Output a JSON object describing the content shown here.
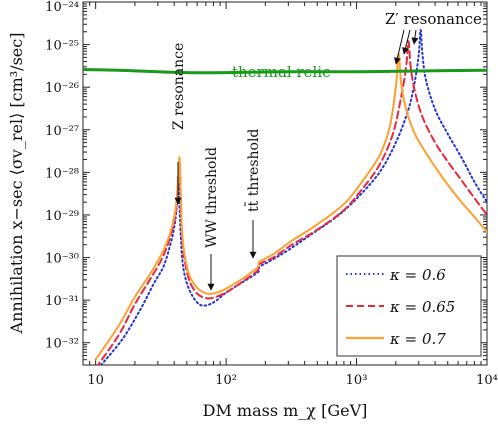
{
  "chart_data": {
    "type": "line",
    "xlabel": "DM mass m_χ [GeV]",
    "ylabel": "Annihilation x−sec ⟨σv_rel⟩ [cm³/sec]",
    "x_scale": "log",
    "y_scale": "log",
    "xlim": [
      8,
      10000
    ],
    "ylim": [
      3e-33,
      1e-24
    ],
    "x_ticks": [
      10,
      100,
      1000,
      10000
    ],
    "x_tick_labels": [
      "10",
      "10²",
      "10³",
      "10⁴"
    ],
    "y_ticks": [
      1e-32,
      1e-31,
      1e-30,
      1e-29,
      1e-28,
      1e-27,
      1e-26,
      1e-25,
      1e-24
    ],
    "y_tick_labels": [
      "10⁻³²",
      "10⁻³¹",
      "10⁻³⁰",
      "10⁻²⁹",
      "10⁻²⁸",
      "10⁻²⁷",
      "10⁻²⁶",
      "10⁻²⁵",
      "10⁻²⁴"
    ],
    "grid": false,
    "legend_position": "bottom-right",
    "series": [
      {
        "name": "κ = 0.6",
        "color": "#2233dd",
        "style": "dotted",
        "points": [
          [
            11,
            3e-33
          ],
          [
            16,
            1.2e-32
          ],
          [
            22,
            6e-32
          ],
          [
            28,
            2.5e-31
          ],
          [
            33,
            6e-31
          ],
          [
            37,
            1.8e-30
          ],
          [
            40,
            5e-30
          ],
          [
            42,
            1.8e-29
          ],
          [
            43,
            8e-29
          ],
          [
            44,
            1.4e-29
          ],
          [
            45,
            3e-30
          ],
          [
            46,
            1e-30
          ],
          [
            48,
            4e-31
          ],
          [
            52,
            1.8e-31
          ],
          [
            58,
            1e-31
          ],
          [
            65,
            7.5e-32
          ],
          [
            75,
            8e-32
          ],
          [
            85,
            1e-31
          ],
          [
            100,
            1.5e-31
          ],
          [
            130,
            2.5e-31
          ],
          [
            175,
            4.5e-31
          ],
          [
            180,
            6e-31
          ],
          [
            220,
            8.5e-31
          ],
          [
            300,
            1.5e-30
          ],
          [
            450,
            3.5e-30
          ],
          [
            700,
            9e-30
          ],
          [
            1000,
            2.4e-29
          ],
          [
            1500,
            1e-28
          ],
          [
            2000,
            5e-28
          ],
          [
            2500,
            3e-27
          ],
          [
            2800,
            1.4e-26
          ],
          [
            3000,
            6e-26
          ],
          [
            3100,
            2.2e-25
          ],
          [
            3200,
            6e-26
          ],
          [
            3400,
            1.5e-26
          ],
          [
            4000,
            3e-27
          ],
          [
            5000,
            8e-28
          ],
          [
            6500,
            2e-28
          ],
          [
            8000,
            6e-29
          ],
          [
            10000,
            2e-29
          ]
        ]
      },
      {
        "name": "κ = 0.65",
        "color": "#e8283c",
        "style": "dashed",
        "points": [
          [
            10,
            2.5e-33
          ],
          [
            15,
            1.5e-32
          ],
          [
            20,
            8e-32
          ],
          [
            26,
            3e-31
          ],
          [
            32,
            9e-31
          ],
          [
            37,
            2.8e-30
          ],
          [
            41,
            1.1e-29
          ],
          [
            43,
            6e-29
          ],
          [
            44,
            1.8e-28
          ],
          [
            45,
            2e-29
          ],
          [
            46,
            3e-30
          ],
          [
            48,
            9e-31
          ],
          [
            52,
            3e-31
          ],
          [
            58,
            1.6e-31
          ],
          [
            65,
            1.2e-31
          ],
          [
            75,
            1.1e-31
          ],
          [
            90,
            1.3e-31
          ],
          [
            110,
            1.8e-31
          ],
          [
            140,
            3e-31
          ],
          [
            175,
            5e-31
          ],
          [
            180,
            7e-31
          ],
          [
            230,
            1e-30
          ],
          [
            320,
            2e-30
          ],
          [
            500,
            4.5e-30
          ],
          [
            800,
            1.3e-29
          ],
          [
            1100,
            4e-29
          ],
          [
            1500,
            1.5e-28
          ],
          [
            1900,
            8e-28
          ],
          [
            2200,
            6e-27
          ],
          [
            2400,
            3e-26
          ],
          [
            2500,
            1.2e-25
          ],
          [
            2600,
            3e-26
          ],
          [
            2800,
            8e-27
          ],
          [
            3200,
            2e-27
          ],
          [
            4000,
            5e-28
          ],
          [
            5000,
            1.8e-28
          ],
          [
            6500,
            6e-29
          ],
          [
            8000,
            2.5e-29
          ],
          [
            10000,
            1e-29
          ]
        ]
      },
      {
        "name": "κ = 0.7",
        "color": "#ffa030",
        "style": "solid",
        "points": [
          [
            10,
            4e-33
          ],
          [
            15,
            2.5e-32
          ],
          [
            20,
            1.2e-31
          ],
          [
            26,
            4e-31
          ],
          [
            32,
            1.2e-30
          ],
          [
            37,
            3.5e-30
          ],
          [
            41,
            1.4e-29
          ],
          [
            43,
            8e-29
          ],
          [
            44,
            2.2e-28
          ],
          [
            45,
            2.5e-29
          ],
          [
            46,
            4e-30
          ],
          [
            48,
            1.2e-30
          ],
          [
            52,
            4e-31
          ],
          [
            58,
            2.2e-31
          ],
          [
            65,
            1.6e-31
          ],
          [
            75,
            1.4e-31
          ],
          [
            90,
            1.6e-31
          ],
          [
            110,
            2.2e-31
          ],
          [
            140,
            3.5e-31
          ],
          [
            175,
            6e-31
          ],
          [
            180,
            8e-31
          ],
          [
            230,
            1.2e-30
          ],
          [
            320,
            2.5e-30
          ],
          [
            500,
            6e-30
          ],
          [
            800,
            1.8e-29
          ],
          [
            1100,
            6e-29
          ],
          [
            1500,
            2.5e-28
          ],
          [
            1800,
            1.2e-27
          ],
          [
            2000,
            1e-26
          ],
          [
            2100,
            6e-26
          ],
          [
            2200,
            1.2e-26
          ],
          [
            2400,
            3e-27
          ],
          [
            2800,
            8e-28
          ],
          [
            3500,
            2.5e-28
          ],
          [
            4500,
            8e-29
          ],
          [
            6000,
            2.5e-29
          ],
          [
            8000,
            9e-30
          ],
          [
            10000,
            4e-30
          ]
        ]
      },
      {
        "name": "thermal relic",
        "color": "#1a9a1a",
        "style": "solid",
        "points": [
          [
            8,
            2.6e-26
          ],
          [
            15,
            2.5e-26
          ],
          [
            30,
            2.3e-26
          ],
          [
            50,
            2.2e-26
          ],
          [
            100,
            2.2e-26
          ],
          [
            300,
            2.3e-26
          ],
          [
            1000,
            2.3e-26
          ],
          [
            3000,
            2.4e-26
          ],
          [
            10000,
            2.5e-26
          ]
        ]
      }
    ],
    "annotations": [
      {
        "label": "Z resonance",
        "x": 44,
        "y": 2.5e-28
      },
      {
        "label": "WW threshold",
        "x": 80,
        "y": 1.5e-31
      },
      {
        "label": "tt̄ threshold",
        "x": 175,
        "y": 6e-31
      },
      {
        "label": "Z′ resonance",
        "target_x": [
          2100,
          2500,
          3100
        ],
        "target_y": [
          6e-26,
          1.2e-25,
          2.2e-25
        ]
      },
      {
        "label": "thermal relic"
      }
    ],
    "legend": [
      {
        "label": "κ = 0.6"
      },
      {
        "label": "κ = 0.65"
      },
      {
        "label": "κ = 0.7"
      }
    ]
  }
}
